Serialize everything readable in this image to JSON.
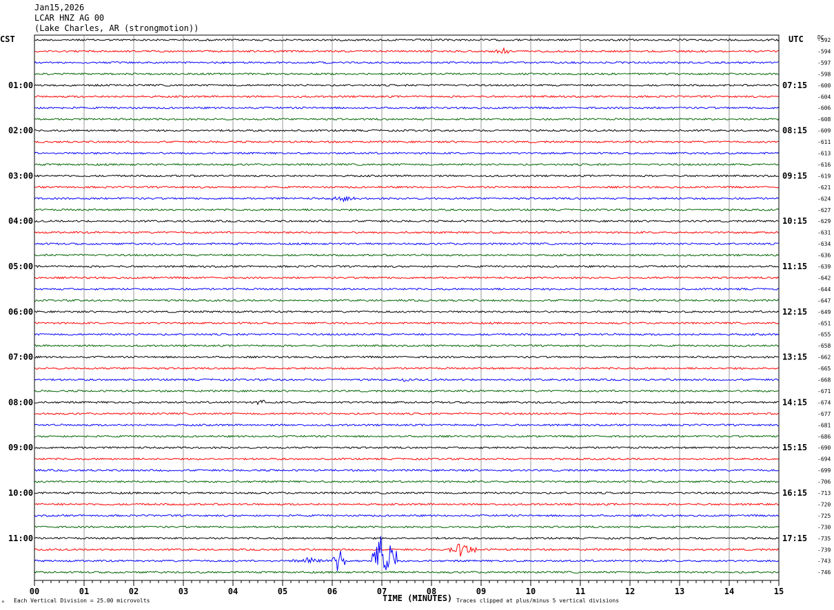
{
  "header": {
    "date": "Jan15,2026",
    "station": "LCAR HNZ AG 00",
    "location": "(Lake Charles, AR (strongmotion))"
  },
  "axis": {
    "left_tz": "CST",
    "right_tz": "UTC",
    "dc_label": "DC",
    "xlabel": "TIME (MINUTES)",
    "x_ticks": [
      "00",
      "01",
      "02",
      "03",
      "04",
      "05",
      "06",
      "07",
      "08",
      "09",
      "10",
      "11",
      "12",
      "13",
      "14",
      "15"
    ],
    "left_hours": [
      "01:00",
      "02:00",
      "03:00",
      "04:00",
      "05:00",
      "06:00",
      "07:00",
      "08:00",
      "09:00",
      "10:00",
      "11:00"
    ],
    "right_hours": [
      "07:15",
      "08:15",
      "09:15",
      "10:15",
      "11:15",
      "12:15",
      "13:15",
      "14:15",
      "15:15",
      "16:15",
      "17:15"
    ]
  },
  "footer": {
    "scale_note": "Each Vertical Division =   25.00 microvolts",
    "clip_note": "Traces clipped at plus/minus 5 vertical divisions"
  },
  "colors": {
    "cycle": [
      "#000000",
      "#ff0000",
      "#0000ff",
      "#006400"
    ],
    "grid": "#999999"
  },
  "chart_data": {
    "type": "line",
    "title": "LCAR HNZ AG 00",
    "xlabel": "TIME (MINUTES)",
    "xlim": [
      0,
      15
    ],
    "trace_count": 48,
    "dc_offsets": [
      -592,
      -594,
      -597,
      -598,
      -600,
      -604,
      -606,
      -608,
      -609,
      -611,
      -613,
      -616,
      -619,
      -621,
      -624,
      -627,
      -629,
      -631,
      -634,
      -636,
      -639,
      -642,
      -644,
      -647,
      -649,
      -651,
      -655,
      -658,
      -662,
      -665,
      -668,
      -671,
      -674,
      -677,
      -681,
      -686,
      -690,
      -694,
      -699,
      -706,
      -713,
      -720,
      -725,
      -730,
      -735,
      -739,
      -743,
      -746
    ],
    "events": [
      {
        "trace": 1,
        "start_min": 9.3,
        "end_min": 9.6,
        "amp": 0.3
      },
      {
        "trace": 14,
        "start_min": 6.0,
        "end_min": 6.5,
        "amp": 0.3
      },
      {
        "trace": 30,
        "start_min": 7.4,
        "end_min": 7.6,
        "amp": 0.25
      },
      {
        "trace": 32,
        "start_min": 4.5,
        "end_min": 4.7,
        "amp": 0.4
      },
      {
        "trace": 45,
        "start_min": 8.3,
        "end_min": 8.9,
        "amp": 0.7
      },
      {
        "trace": 46,
        "start_min": 5.2,
        "end_min": 6.0,
        "amp": 0.35
      },
      {
        "trace": 46,
        "start_min": 6.0,
        "end_min": 6.25,
        "amp": 1.5
      },
      {
        "trace": 46,
        "start_min": 6.8,
        "end_min": 7.3,
        "amp": 3.4
      }
    ]
  }
}
